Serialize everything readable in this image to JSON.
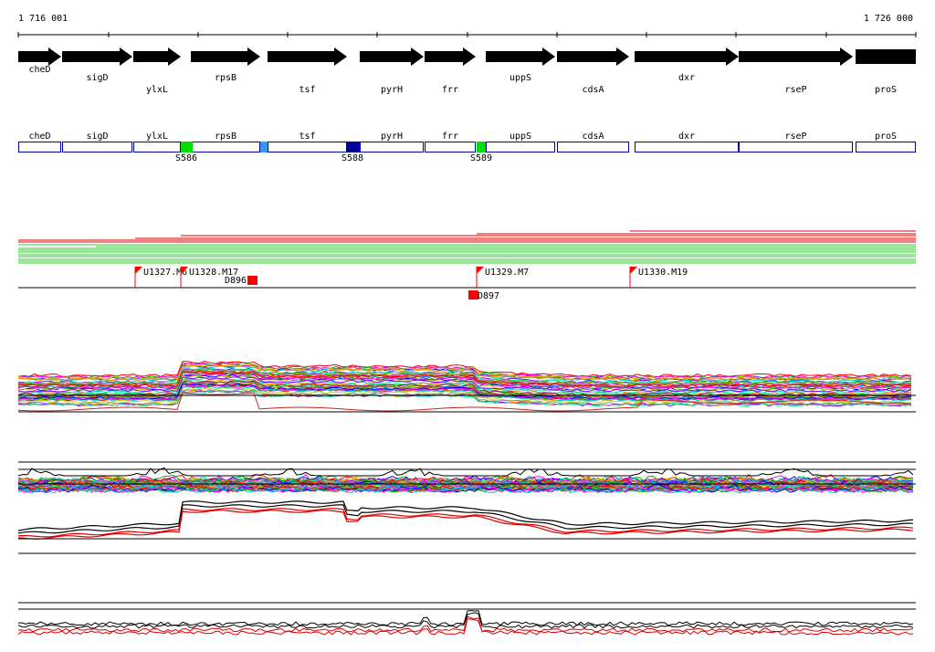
{
  "coords": {
    "start": "1 716 001",
    "end": "1 726 000"
  },
  "genes": [
    {
      "name": "cheD",
      "row": 0
    },
    {
      "name": "sigD",
      "row": 1
    },
    {
      "name": "ylxL",
      "row": 2
    },
    {
      "name": "rpsB",
      "row": 1
    },
    {
      "name": "tsf",
      "row": 2
    },
    {
      "name": "pyrH",
      "row": 3
    },
    {
      "name": "frr",
      "row": 2
    },
    {
      "name": "uppS",
      "row": 1
    },
    {
      "name": "cdsA",
      "row": 3
    },
    {
      "name": "dxr",
      "row": 1
    },
    {
      "name": "rseP",
      "row": 2
    },
    {
      "name": "proS",
      "row": 3
    }
  ],
  "segments": [
    {
      "label": "S586",
      "color": "#00dd00"
    },
    {
      "label": "S588",
      "color": "#000099"
    },
    {
      "label": "S589",
      "color": "#00dd00"
    }
  ],
  "segment_extra_colors": [
    "#3399ff"
  ],
  "markers_upper": [
    {
      "label": "U1327.M6"
    },
    {
      "label": "U1328.M17"
    },
    {
      "label": "U1329.M7"
    },
    {
      "label": "U1330.M19"
    }
  ],
  "markers_lower": [
    {
      "label": "D896"
    },
    {
      "label": "D897"
    }
  ],
  "colors": {
    "gene_arrow": "#000000",
    "block_outline": "#0000aa",
    "marker_flag": "#ff0000",
    "reads_red": "#dd0000",
    "reads_green": "#33cc33",
    "baseline": "#000000"
  }
}
